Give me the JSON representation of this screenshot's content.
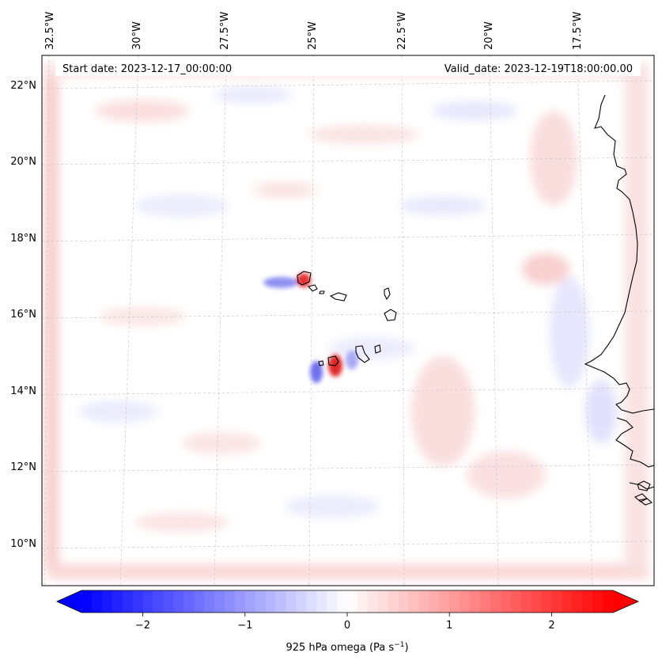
{
  "map": {
    "start_date_text": "Start date: 2023-12-17_00:00:00",
    "valid_date_text": "Valid_date: 2023-12-19T18:00:00.00",
    "lon_labels": [
      "32.5°W",
      "30°W",
      "27.5°W",
      "25°W",
      "22.5°W",
      "20°W",
      "17.5°W"
    ],
    "lat_labels": [
      "22°N",
      "20°N",
      "18°N",
      "16°N",
      "14°N",
      "12°N",
      "10°N"
    ],
    "coastline_color": "#000000",
    "gridline_color": "#bfbfbf",
    "field_colormap": "bwr"
  },
  "colorbar": {
    "label_main": "925 hPa omega (Pa s",
    "label_exp": "−1",
    "label_close": ")",
    "ticks": [
      "−2",
      "−1",
      "0",
      "1",
      "2"
    ],
    "tick_values": [
      -2,
      -1,
      0,
      1,
      2
    ],
    "range": [
      -2.6,
      2.6
    ],
    "extend": "both",
    "colors": {
      "low": "#0000ff",
      "mid": "#ffffff",
      "high": "#ff0000"
    }
  }
}
